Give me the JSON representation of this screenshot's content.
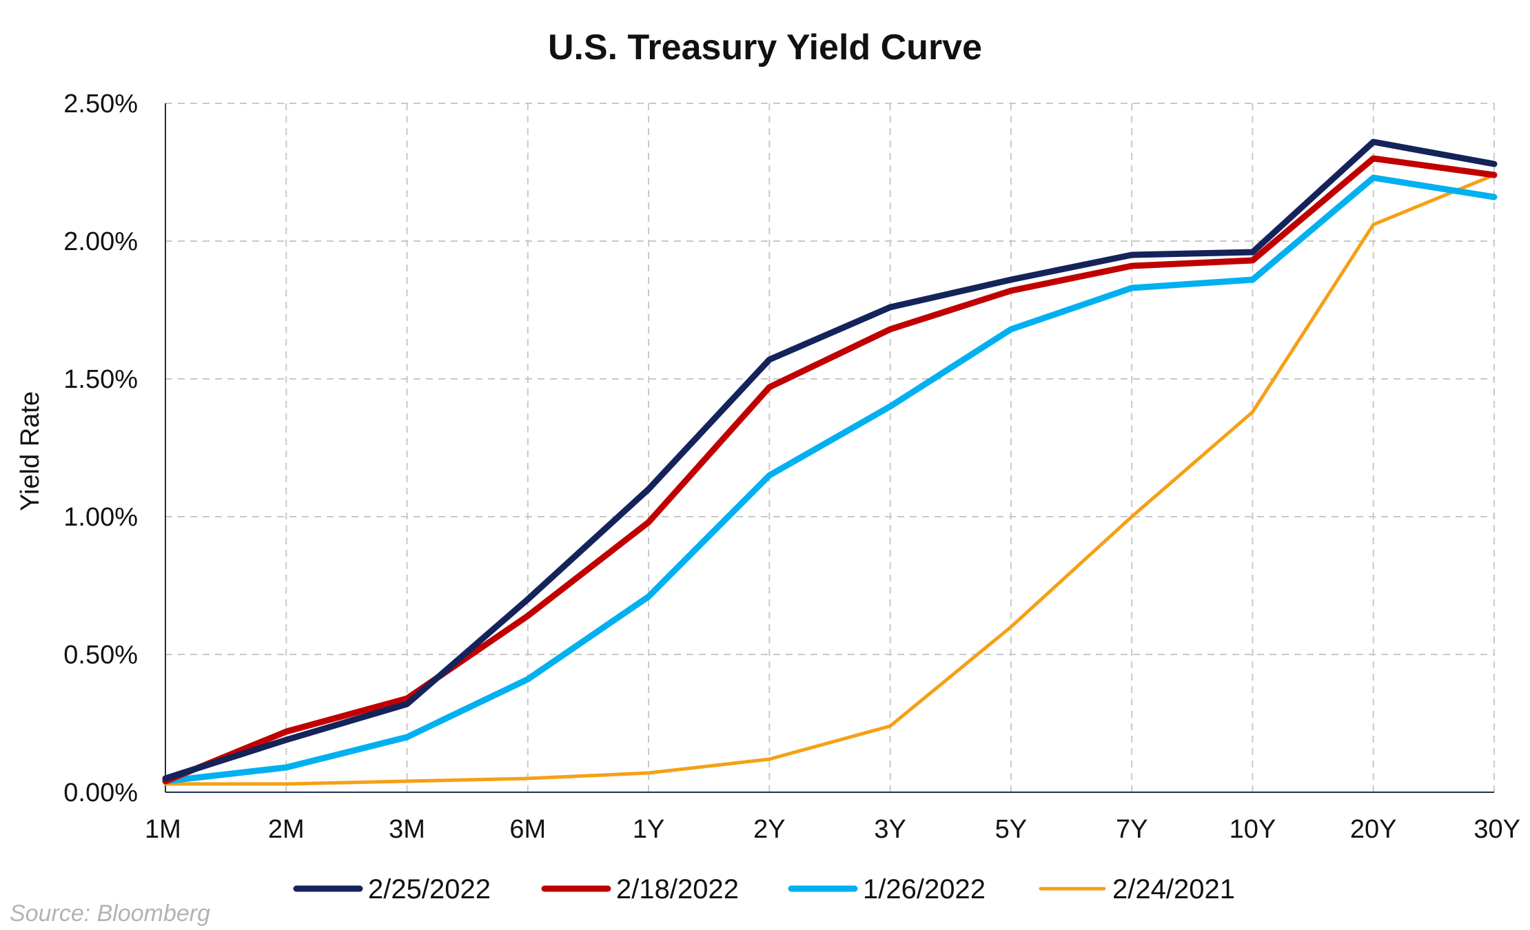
{
  "chart_data": {
    "type": "line",
    "title": "U.S. Treasury Yield Curve",
    "xlabel": "",
    "ylabel": "Yield Rate",
    "categories": [
      "1M",
      "2M",
      "3M",
      "6M",
      "1Y",
      "2Y",
      "3Y",
      "5Y",
      "7Y",
      "10Y",
      "20Y",
      "30Y"
    ],
    "ylim": [
      0,
      2.5
    ],
    "yticks": [
      0,
      0.5,
      1.0,
      1.5,
      2.0,
      2.5
    ],
    "ytick_labels": [
      "0.00%",
      "0.50%",
      "1.00%",
      "1.50%",
      "2.00%",
      "2.50%"
    ],
    "grid": true,
    "legend_position": "bottom",
    "series": [
      {
        "name": "2/25/2022",
        "color": "#14235a",
        "values": [
          0.05,
          0.19,
          0.32,
          0.7,
          1.1,
          1.57,
          1.76,
          1.86,
          1.95,
          1.96,
          2.36,
          2.28
        ]
      },
      {
        "name": "2/18/2022",
        "color": "#c00000",
        "values": [
          0.04,
          0.22,
          0.34,
          0.64,
          0.98,
          1.47,
          1.68,
          1.82,
          1.91,
          1.93,
          2.3,
          2.24
        ]
      },
      {
        "name": "1/26/2022",
        "color": "#00b0f0",
        "values": [
          0.04,
          0.09,
          0.2,
          0.41,
          0.71,
          1.15,
          1.4,
          1.68,
          1.83,
          1.86,
          2.23,
          2.16
        ]
      },
      {
        "name": "2/24/2021",
        "color": "#f5a015",
        "values": [
          0.03,
          0.03,
          0.04,
          0.05,
          0.07,
          0.12,
          0.24,
          0.6,
          1.0,
          1.38,
          2.06,
          2.24
        ]
      }
    ],
    "source": "Source: Bloomberg"
  }
}
